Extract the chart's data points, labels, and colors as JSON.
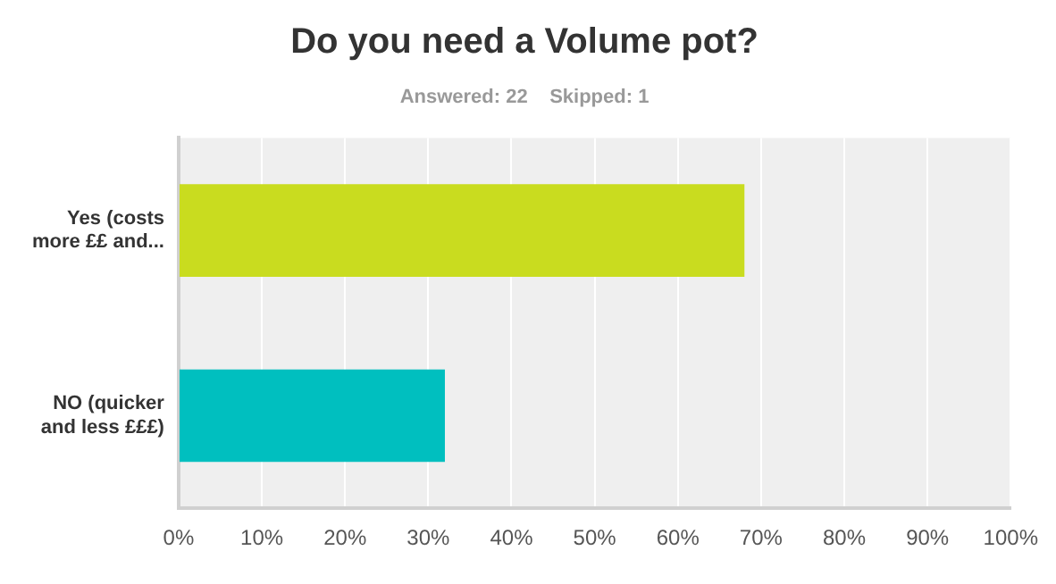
{
  "chart_data": {
    "type": "bar",
    "orientation": "horizontal",
    "title": "Do you need a Volume pot?",
    "subtitle": "Answered: 22    Skipped: 1",
    "categories": [
      "Yes (costs more ££ and...",
      "NO (quicker and less £££)"
    ],
    "values": [
      68,
      32
    ],
    "colors": [
      "#c9dc1f",
      "#00bfbf"
    ],
    "xlim": [
      0,
      100
    ],
    "xticks": [
      {
        "value": 0,
        "label": "0%"
      },
      {
        "value": 10,
        "label": "10%"
      },
      {
        "value": 20,
        "label": "20%"
      },
      {
        "value": 30,
        "label": "30%"
      },
      {
        "value": 40,
        "label": "40%"
      },
      {
        "value": 50,
        "label": "50%"
      },
      {
        "value": 60,
        "label": "60%"
      },
      {
        "value": 70,
        "label": "70%"
      },
      {
        "value": 80,
        "label": "80%"
      },
      {
        "value": 90,
        "label": "90%"
      },
      {
        "value": 100,
        "label": "100%"
      }
    ],
    "grid": "x",
    "legend": false
  }
}
